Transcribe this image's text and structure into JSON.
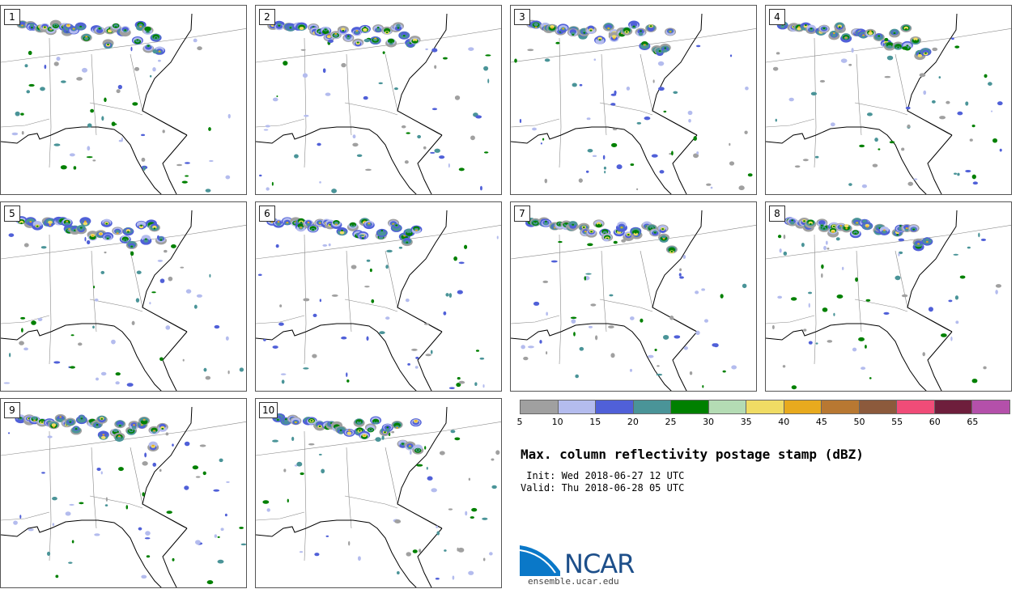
{
  "map": {
    "panels": [
      {
        "label": "1"
      },
      {
        "label": "2"
      },
      {
        "label": "3"
      },
      {
        "label": "4"
      },
      {
        "label": "5"
      },
      {
        "label": "6"
      },
      {
        "label": "7"
      },
      {
        "label": "8"
      },
      {
        "label": "9"
      },
      {
        "label": "10"
      }
    ]
  },
  "legend": {
    "colors": [
      "#a0a0a0",
      "#b4bcee",
      "#5060d8",
      "#4a9498",
      "#008000",
      "#b4dcb4",
      "#f0dc64",
      "#e8aa1e",
      "#b87832",
      "#8c5a3c",
      "#f04c78",
      "#6e1e3c",
      "#b450aa"
    ],
    "ticks": [
      "5",
      "10",
      "15",
      "20",
      "25",
      "30",
      "35",
      "40",
      "45",
      "50",
      "55",
      "60",
      "65"
    ]
  },
  "title": "Max. column reflectivity postage stamp (dBZ)",
  "init": " Init: Wed 2018-06-27 12 UTC",
  "valid": "Valid: Thu 2018-06-28 05 UTC",
  "logo": {
    "name": "NCAR",
    "url": "ensemble.ucar.edu"
  }
}
